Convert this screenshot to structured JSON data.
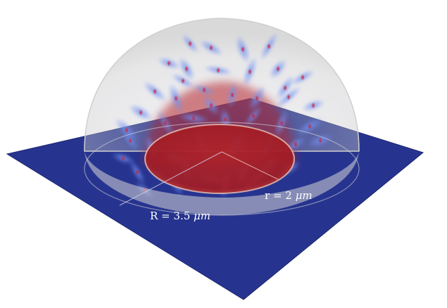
{
  "labels": {
    "outer_radius": {
      "prefix": "R = 3.5 ",
      "unit": "μm"
    },
    "inner_radius": {
      "prefix": "r = 2 ",
      "unit": "μm"
    }
  },
  "colors": {
    "plane": "#27348f",
    "plane_edge": "#1c2770",
    "dome": "#d6d6d6",
    "disk": "#b41e22",
    "cell_cloud": "#5a78e6",
    "cell_core": "#c8202c"
  }
}
